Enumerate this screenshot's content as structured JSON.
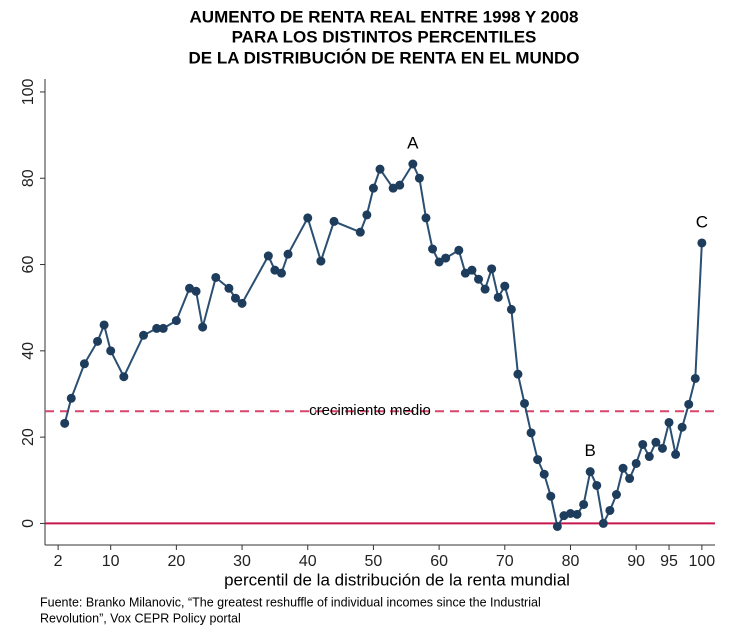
{
  "chart_data": {
    "type": "line",
    "title": [
      "AUMENTO DE RENTA REAL ENTRE 1998 Y 2008",
      "PARA LOS DISTINTOS PERCENTILES",
      "DE LA DISTRIBUCIÓN DE RENTA EN EL MUNDO"
    ],
    "x_label": "percentil de la distribución de la renta mundial",
    "source": [
      "Fuente: Branko Milanovic, “The greatest reshuffle of individual incomes since the Industrial",
      "Revolution”, Vox CEPR Policy portal"
    ],
    "x": [
      3,
      4,
      6,
      8,
      9,
      10,
      12,
      15,
      17,
      18,
      20,
      22,
      23,
      24,
      26,
      28,
      29,
      30,
      34,
      35,
      36,
      37,
      40,
      42,
      44,
      48,
      49,
      50,
      51,
      53,
      54,
      56,
      57,
      58,
      59,
      60,
      61,
      63,
      64,
      65,
      66,
      67,
      68,
      69,
      70,
      71,
      72,
      73,
      74,
      75,
      76,
      77,
      78,
      79,
      80,
      81,
      82,
      83,
      84,
      85,
      86,
      87,
      88,
      89,
      90,
      91,
      92,
      93,
      94,
      95,
      96,
      97,
      98,
      99,
      100
    ],
    "values": [
      23.2,
      29,
      37,
      42.2,
      46,
      40,
      34,
      43.6,
      45.2,
      45.2,
      47,
      54.5,
      53.8,
      45.5,
      57,
      54.5,
      52.2,
      51,
      62,
      58.7,
      58,
      62.4,
      70.8,
      60.8,
      70,
      67.5,
      71.5,
      77.7,
      82.1,
      77.7,
      78.4,
      83.3,
      80,
      70.8,
      63.6,
      60.6,
      61.5,
      63.3,
      58,
      58.7,
      56.6,
      54.3,
      59,
      52.4,
      55,
      49.6,
      34.6,
      27.8,
      21,
      14.8,
      11.4,
      6.3,
      -0.7,
      1.8,
      2.3,
      2.1,
      4.4,
      12,
      8.8,
      0,
      3,
      6.7,
      12.8,
      10.4,
      13.9,
      18.3,
      15.5,
      18.8,
      17.4,
      23.4,
      16,
      22.3,
      27.6,
      33.6,
      65
    ],
    "color": "#2b4f72",
    "xlim": [
      0,
      102
    ],
    "ylim": [
      -5,
      103
    ],
    "xticks": [
      2,
      10,
      20,
      30,
      40,
      50,
      60,
      70,
      80,
      90,
      95,
      100
    ],
    "yticks": [
      0,
      20,
      40,
      60,
      80,
      100
    ],
    "hlines": [
      {
        "value": 26,
        "label": "crecimiento medio",
        "color": "#d9456a",
        "style": "dashed"
      },
      {
        "value": 0,
        "color": "#c8174f",
        "style": "solid"
      }
    ],
    "annotations": [
      {
        "text": "A",
        "x": 56
      },
      {
        "text": "B",
        "x": 83
      },
      {
        "text": "C",
        "x": 100
      }
    ]
  }
}
